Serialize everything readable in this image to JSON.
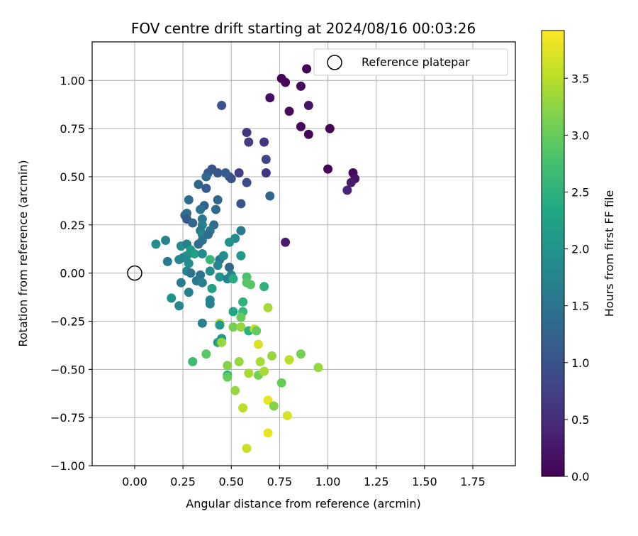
{
  "chart_data": {
    "type": "scatter",
    "title": "FOV centre drift starting at 2024/08/16 00:03:26",
    "xlabel": "Angular distance from reference (arcmin)",
    "ylabel": "Rotation from reference (arcmin)",
    "xlim": [
      -0.22,
      1.97
    ],
    "ylim": [
      -1.0,
      1.2
    ],
    "x_ticks": [
      0.0,
      0.25,
      0.5,
      0.75,
      1.0,
      1.25,
      1.5,
      1.75
    ],
    "x_tick_labels": [
      "0.00",
      "0.25",
      "0.50",
      "0.75",
      "1.00",
      "1.25",
      "1.50",
      "1.75"
    ],
    "y_ticks": [
      -1.0,
      -0.75,
      -0.5,
      -0.25,
      0.0,
      0.25,
      0.5,
      0.75,
      1.0
    ],
    "y_tick_labels": [
      "−1.00",
      "−0.75",
      "−0.50",
      "−0.25",
      "0.00",
      "0.25",
      "0.50",
      "0.75",
      "1.00"
    ],
    "grid": true,
    "legend": {
      "placement": "top-right",
      "entries": [
        "Reference platepar"
      ]
    },
    "reference_point": {
      "x": 0.0,
      "y": 0.0,
      "label": "Reference platepar"
    },
    "colorbar": {
      "label": "Hours from first FF file",
      "colormap": "viridis",
      "range": [
        0.0,
        3.92
      ],
      "ticks": [
        0.0,
        0.5,
        1.0,
        1.5,
        2.0,
        2.5,
        3.0,
        3.5
      ],
      "tick_labels": [
        "0.0",
        "0.5",
        "1.0",
        "1.5",
        "2.0",
        "2.5",
        "3.0",
        "3.5"
      ]
    },
    "series": [
      {
        "points": [
          {
            "x": 0.76,
            "y": 1.01,
            "c": 0.05
          },
          {
            "x": 0.78,
            "y": 0.99,
            "c": 0.08
          },
          {
            "x": 0.89,
            "y": 1.06,
            "c": 0.02
          },
          {
            "x": 0.86,
            "y": 0.97,
            "c": 0.1
          },
          {
            "x": 0.7,
            "y": 0.91,
            "c": 0.15
          },
          {
            "x": 0.9,
            "y": 0.87,
            "c": 0.2
          },
          {
            "x": 0.8,
            "y": 0.84,
            "c": 0.12
          },
          {
            "x": 0.86,
            "y": 0.76,
            "c": 0.1
          },
          {
            "x": 0.9,
            "y": 0.72,
            "c": 0.05
          },
          {
            "x": 1.01,
            "y": 0.75,
            "c": 0.02
          },
          {
            "x": 1.0,
            "y": 0.54,
            "c": 0.05
          },
          {
            "x": 1.13,
            "y": 0.52,
            "c": 0.1
          },
          {
            "x": 1.14,
            "y": 0.49,
            "c": 0.22
          },
          {
            "x": 1.12,
            "y": 0.47,
            "c": 0.3
          },
          {
            "x": 1.1,
            "y": 0.43,
            "c": 0.4
          },
          {
            "x": 0.78,
            "y": 0.16,
            "c": 0.3
          },
          {
            "x": 0.45,
            "y": 0.87,
            "c": 1.0
          },
          {
            "x": 0.58,
            "y": 0.73,
            "c": 0.6
          },
          {
            "x": 0.59,
            "y": 0.68,
            "c": 0.7
          },
          {
            "x": 0.67,
            "y": 0.68,
            "c": 0.6
          },
          {
            "x": 0.68,
            "y": 0.59,
            "c": 0.8
          },
          {
            "x": 0.68,
            "y": 0.52,
            "c": 0.6
          },
          {
            "x": 0.54,
            "y": 0.52,
            "c": 0.7
          },
          {
            "x": 0.58,
            "y": 0.47,
            "c": 0.9
          },
          {
            "x": 0.7,
            "y": 0.4,
            "c": 1.3
          },
          {
            "x": 0.55,
            "y": 0.36,
            "c": 1.0
          },
          {
            "x": 0.4,
            "y": 0.54,
            "c": 1.0
          },
          {
            "x": 0.43,
            "y": 0.52,
            "c": 1.05
          },
          {
            "x": 0.47,
            "y": 0.52,
            "c": 1.15
          },
          {
            "x": 0.49,
            "y": 0.5,
            "c": 1.2
          },
          {
            "x": 0.5,
            "y": 0.49,
            "c": 1.0
          },
          {
            "x": 0.38,
            "y": 0.52,
            "c": 1.1
          },
          {
            "x": 0.37,
            "y": 0.5,
            "c": 1.3
          },
          {
            "x": 0.33,
            "y": 0.46,
            "c": 1.3
          },
          {
            "x": 0.37,
            "y": 0.44,
            "c": 1.1
          },
          {
            "x": 0.28,
            "y": 0.38,
            "c": 1.4
          },
          {
            "x": 0.43,
            "y": 0.38,
            "c": 1.3
          },
          {
            "x": 0.36,
            "y": 0.35,
            "c": 1.2
          },
          {
            "x": 0.34,
            "y": 0.33,
            "c": 1.5
          },
          {
            "x": 0.42,
            "y": 0.33,
            "c": 1.3
          },
          {
            "x": 0.26,
            "y": 0.3,
            "c": 1.3
          },
          {
            "x": 0.27,
            "y": 0.31,
            "c": 1.4
          },
          {
            "x": 0.27,
            "y": 0.28,
            "c": 1.1
          },
          {
            "x": 0.35,
            "y": 0.28,
            "c": 1.6
          },
          {
            "x": 0.3,
            "y": 0.26,
            "c": 1.3
          },
          {
            "x": 0.35,
            "y": 0.25,
            "c": 1.7
          },
          {
            "x": 0.41,
            "y": 0.25,
            "c": 1.4
          },
          {
            "x": 0.34,
            "y": 0.22,
            "c": 1.6
          },
          {
            "x": 0.39,
            "y": 0.22,
            "c": 1.5
          },
          {
            "x": 0.55,
            "y": 0.22,
            "c": 1.6
          },
          {
            "x": 0.35,
            "y": 0.2,
            "c": 1.8
          },
          {
            "x": 0.38,
            "y": 0.2,
            "c": 1.4
          },
          {
            "x": 0.35,
            "y": 0.17,
            "c": 1.5
          },
          {
            "x": 0.52,
            "y": 0.18,
            "c": 1.9
          },
          {
            "x": 0.33,
            "y": 0.15,
            "c": 1.4
          },
          {
            "x": 0.49,
            "y": 0.16,
            "c": 2.0
          },
          {
            "x": 0.11,
            "y": 0.15,
            "c": 1.9
          },
          {
            "x": 0.16,
            "y": 0.17,
            "c": 1.8
          },
          {
            "x": 0.24,
            "y": 0.14,
            "c": 1.9
          },
          {
            "x": 0.27,
            "y": 0.15,
            "c": 1.7
          },
          {
            "x": 0.29,
            "y": 0.12,
            "c": 2.1
          },
          {
            "x": 0.31,
            "y": 0.1,
            "c": 2.2
          },
          {
            "x": 0.35,
            "y": 0.1,
            "c": 1.9
          },
          {
            "x": 0.27,
            "y": 0.09,
            "c": 2.0
          },
          {
            "x": 0.25,
            "y": 0.08,
            "c": 1.9
          },
          {
            "x": 0.23,
            "y": 0.07,
            "c": 1.8
          },
          {
            "x": 0.17,
            "y": 0.06,
            "c": 1.6
          },
          {
            "x": 0.28,
            "y": 0.05,
            "c": 1.9
          },
          {
            "x": 0.39,
            "y": 0.07,
            "c": 2.6
          },
          {
            "x": 0.44,
            "y": 0.07,
            "c": 1.5
          },
          {
            "x": 0.46,
            "y": 0.09,
            "c": 1.9
          },
          {
            "x": 0.55,
            "y": 0.09,
            "c": 2.1
          },
          {
            "x": 0.43,
            "y": 0.04,
            "c": 1.8
          },
          {
            "x": 0.49,
            "y": 0.03,
            "c": 1.3
          },
          {
            "x": 0.27,
            "y": 0.01,
            "c": 1.8
          },
          {
            "x": 0.29,
            "y": 0.0,
            "c": 1.5
          },
          {
            "x": 0.39,
            "y": 0.01,
            "c": 1.9
          },
          {
            "x": 0.34,
            "y": -0.01,
            "c": 1.5
          },
          {
            "x": 0.44,
            "y": -0.02,
            "c": 2.0
          },
          {
            "x": 0.48,
            "y": -0.03,
            "c": 1.7
          },
          {
            "x": 0.5,
            "y": -0.01,
            "c": 1.8
          },
          {
            "x": 0.51,
            "y": -0.03,
            "c": 2.4
          },
          {
            "x": 0.32,
            "y": -0.04,
            "c": 1.6
          },
          {
            "x": 0.35,
            "y": -0.05,
            "c": 1.7
          },
          {
            "x": 0.24,
            "y": -0.05,
            "c": 1.6
          },
          {
            "x": 0.28,
            "y": -0.1,
            "c": 1.7
          },
          {
            "x": 0.4,
            "y": -0.08,
            "c": 2.2
          },
          {
            "x": 0.19,
            "y": -0.13,
            "c": 2.0
          },
          {
            "x": 0.23,
            "y": -0.17,
            "c": 1.8
          },
          {
            "x": 0.39,
            "y": -0.14,
            "c": 1.8
          },
          {
            "x": 0.39,
            "y": -0.16,
            "c": 1.7
          },
          {
            "x": 0.58,
            "y": -0.02,
            "c": 2.8
          },
          {
            "x": 0.58,
            "y": -0.05,
            "c": 2.9
          },
          {
            "x": 0.6,
            "y": -0.06,
            "c": 2.9
          },
          {
            "x": 0.67,
            "y": -0.07,
            "c": 2.5
          },
          {
            "x": 0.56,
            "y": -0.15,
            "c": 2.5
          },
          {
            "x": 0.51,
            "y": -0.2,
            "c": 2.3
          },
          {
            "x": 0.56,
            "y": -0.2,
            "c": 2.6
          },
          {
            "x": 0.55,
            "y": -0.23,
            "c": 3.0
          },
          {
            "x": 0.69,
            "y": -0.18,
            "c": 3.4
          },
          {
            "x": 0.35,
            "y": -0.26,
            "c": 1.7
          },
          {
            "x": 0.44,
            "y": -0.26,
            "c": 3.5
          },
          {
            "x": 0.44,
            "y": -0.27,
            "c": 2.1
          },
          {
            "x": 0.51,
            "y": -0.28,
            "c": 3.1
          },
          {
            "x": 0.55,
            "y": -0.28,
            "c": 3.3
          },
          {
            "x": 0.59,
            "y": -0.3,
            "c": 2.5
          },
          {
            "x": 0.62,
            "y": -0.29,
            "c": 3.6
          },
          {
            "x": 0.63,
            "y": -0.3,
            "c": 3.0
          },
          {
            "x": 0.43,
            "y": -0.36,
            "c": 2.2
          },
          {
            "x": 0.45,
            "y": -0.34,
            "c": 2.1
          },
          {
            "x": 0.45,
            "y": -0.36,
            "c": 3.3
          },
          {
            "x": 0.64,
            "y": -0.37,
            "c": 3.7
          },
          {
            "x": 0.37,
            "y": -0.42,
            "c": 2.9
          },
          {
            "x": 0.3,
            "y": -0.46,
            "c": 2.7
          },
          {
            "x": 0.48,
            "y": -0.48,
            "c": 3.2
          },
          {
            "x": 0.54,
            "y": -0.46,
            "c": 3.3
          },
          {
            "x": 0.65,
            "y": -0.46,
            "c": 3.4
          },
          {
            "x": 0.71,
            "y": -0.43,
            "c": 3.3
          },
          {
            "x": 0.8,
            "y": -0.45,
            "c": 3.5
          },
          {
            "x": 0.86,
            "y": -0.42,
            "c": 3.1
          },
          {
            "x": 0.95,
            "y": -0.49,
            "c": 3.3
          },
          {
            "x": 0.48,
            "y": -0.53,
            "c": 2.4
          },
          {
            "x": 0.48,
            "y": -0.54,
            "c": 3.0
          },
          {
            "x": 0.59,
            "y": -0.52,
            "c": 3.4
          },
          {
            "x": 0.64,
            "y": -0.53,
            "c": 3.1
          },
          {
            "x": 0.67,
            "y": -0.51,
            "c": 3.4
          },
          {
            "x": 0.52,
            "y": -0.61,
            "c": 3.3
          },
          {
            "x": 0.76,
            "y": -0.57,
            "c": 3.0
          },
          {
            "x": 0.69,
            "y": -0.66,
            "c": 3.8
          },
          {
            "x": 0.56,
            "y": -0.7,
            "c": 3.5
          },
          {
            "x": 0.72,
            "y": -0.69,
            "c": 3.2
          },
          {
            "x": 0.79,
            "y": -0.74,
            "c": 3.7
          },
          {
            "x": 0.69,
            "y": -0.83,
            "c": 3.8
          },
          {
            "x": 0.58,
            "y": -0.91,
            "c": 3.6
          }
        ]
      }
    ]
  }
}
